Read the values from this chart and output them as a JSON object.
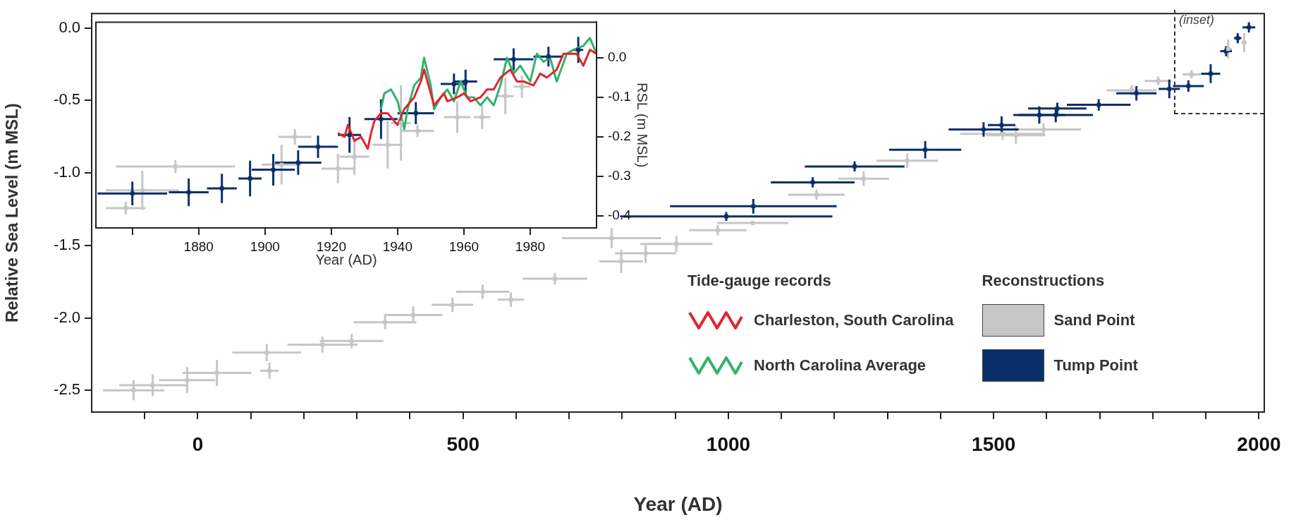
{
  "chart_data": [
    {
      "type": "scatter",
      "xlabel": "Year (AD)",
      "ylabel": "Relative Sea Level (m MSL)",
      "xlim": [
        -200,
        2010
      ],
      "ylim": [
        -2.65,
        0.1
      ],
      "xticks": [
        {
          "value": -100,
          "label": null
        },
        0,
        {
          "value": 100,
          "label": null
        },
        {
          "value": 200,
          "label": null
        },
        {
          "value": 300,
          "label": null
        },
        {
          "value": 400,
          "label": null
        },
        500,
        {
          "value": 600,
          "label": null
        },
        {
          "value": 700,
          "label": null
        },
        {
          "value": 800,
          "label": null
        },
        {
          "value": 900,
          "label": null
        },
        1000,
        {
          "value": 1100,
          "label": null
        },
        {
          "value": 1200,
          "label": null
        },
        {
          "value": 1300,
          "label": null
        },
        {
          "value": 1400,
          "label": null
        },
        1500,
        {
          "value": 1600,
          "label": null
        },
        {
          "value": 1700,
          "label": null
        },
        {
          "value": 1800,
          "label": null
        },
        {
          "value": 1900,
          "label": null
        },
        2000
      ],
      "yticks": [
        {
          "value": -2.5,
          "label": "-2.5"
        },
        {
          "value": -2,
          "label": "-2.0"
        },
        {
          "value": -1.5,
          "label": "-1.5"
        },
        {
          "value": -1,
          "label": "-1.0"
        },
        {
          "value": -0.5,
          "label": "-0.5"
        },
        {
          "value": 0,
          "label": "0.0"
        }
      ],
      "grid": false,
      "legend": false,
      "marker": "square",
      "annotations": [
        "(inset)"
      ],
      "series": [
        {
          "color": "#c6c6c6",
          "x": [
            -121,
            -85,
            -20,
            36,
            130,
            135,
            235,
            290,
            353,
            406,
            480,
            537,
            590,
            673,
            780,
            798,
            844,
            902,
            980,
            1046,
            1166,
            1255,
            1337,
            1517,
            1542,
            1594,
            1760,
            1810,
            1873,
            1942,
            1972
          ],
          "values": [
            -2.5,
            -2.465,
            -2.43,
            -2.38,
            -2.24,
            -2.365,
            -2.185,
            -2.16,
            -2.03,
            -1.98,
            -1.91,
            -1.82,
            -1.875,
            -1.73,
            -1.45,
            -1.61,
            -1.555,
            -1.49,
            -1.395,
            -1.345,
            -1.15,
            -1.04,
            -0.915,
            -0.73,
            -0.74,
            -0.7,
            -0.43,
            -0.365,
            -0.32,
            -0.145,
            -0.1
          ],
          "xerrors": [
            58,
            63,
            53,
            65,
            65,
            17,
            66,
            60,
            59,
            55,
            39,
            50,
            25,
            61,
            93,
            41,
            58,
            68,
            54,
            67,
            53,
            48,
            58,
            80,
            55,
            71,
            47,
            25,
            17,
            7,
            5
          ],
          "errors": [
            0.07,
            0.075,
            0.09,
            0.09,
            0.06,
            0.055,
            0.055,
            0.05,
            0.05,
            0.06,
            0.05,
            0.05,
            0.05,
            0.04,
            0.07,
            0.08,
            0.065,
            0.055,
            0.035,
            0.015,
            0.035,
            0.05,
            0.05,
            0.04,
            0.06,
            0.04,
            0.035,
            0.03,
            0.03,
            0.065,
            0.065
          ]
        },
        {
          "color": "#0b2f6a",
          "x": [
            996,
            1047,
            1159,
            1238,
            1371,
            1481,
            1515,
            1586,
            1617,
            1620,
            1698,
            1769,
            1831,
            1867,
            1909,
            1938,
            1960,
            1981
          ],
          "values": [
            -1.3,
            -1.23,
            -1.065,
            -0.955,
            -0.84,
            -0.7,
            -0.67,
            -0.6,
            -0.6,
            -0.555,
            -0.53,
            -0.45,
            -0.42,
            -0.4,
            -0.315,
            -0.16,
            -0.07,
            0.005
          ],
          "xerrors": [
            200,
            157,
            79,
            94,
            68,
            66,
            26,
            49,
            70,
            55,
            60,
            38,
            20,
            29,
            18,
            11,
            7,
            12
          ],
          "errors": [
            0.03,
            0.05,
            0.035,
            0.035,
            0.06,
            0.05,
            0.06,
            0.06,
            0.05,
            0.04,
            0.04,
            0.05,
            0.065,
            0.04,
            0.065,
            0.035,
            0.035,
            0.035
          ]
        }
      ]
    },
    {
      "type": "scatter",
      "xlabel": "Year (AD)",
      "ylabel": "RSL (m MSL)",
      "xlim": [
        1849,
        2000
      ],
      "ylim": [
        -0.43,
        0.09
      ],
      "xticks": [
        {
          "value": 1860,
          "label": null
        },
        1880,
        1900,
        1920,
        1940,
        1960,
        1980
      ],
      "yticks": [
        {
          "value": -0.4,
          "label": "-0.4"
        },
        {
          "value": -0.3,
          "label": "-0.3"
        },
        {
          "value": -0.2,
          "label": "-0.2"
        },
        {
          "value": -0.1,
          "label": "-0.1"
        },
        {
          "value": 0,
          "label": "0.0"
        }
      ],
      "grid": false,
      "legend": "bottom right",
      "marker": "square",
      "annotations": [
        "Tide-gauge records",
        "Reconstructions"
      ],
      "series": [
        {
          "name": "Sand Point",
          "color": "#c6c6c6",
          "x": [
            1873,
            1863,
            1858,
            1905,
            1909,
            1922,
            1927,
            1937,
            1941,
            1946,
            1958,
            1965.5,
            1972.5,
            1977.5
          ],
          "values": [
            -0.275,
            -0.335,
            -0.38,
            -0.27,
            -0.2,
            -0.28,
            -0.25,
            -0.22,
            -0.165,
            -0.185,
            -0.15,
            -0.15,
            -0.097,
            -0.073
          ],
          "xerrors": [
            18,
            11,
            6,
            6,
            5,
            5,
            4.5,
            4.5,
            3,
            5,
            4,
            2.5,
            2.5,
            2.5
          ],
          "errors": [
            0.016,
            0.05,
            0.016,
            0.05,
            0.02,
            0.037,
            0.046,
            0.06,
            0.095,
            0.016,
            0.04,
            0.03,
            0.046,
            0.028
          ]
        },
        {
          "name": "Tump Point",
          "color": "#0b2f6a",
          "x": [
            1860,
            1877,
            1887,
            1895.5,
            1902.5,
            1910,
            1916,
            1925.5,
            1935,
            1945.5,
            1957,
            1960.5,
            1975,
            1985.5,
            1994.5
          ],
          "values": [
            -0.343,
            -0.34,
            -0.33,
            -0.305,
            -0.283,
            -0.265,
            -0.225,
            -0.195,
            -0.155,
            -0.14,
            -0.066,
            -0.06,
            -0.004,
            0.003,
            0.02
          ],
          "xerrors": [
            10.5,
            6,
            4.5,
            3.5,
            6.5,
            7,
            6,
            3.5,
            5,
            5.5,
            4,
            3.5,
            6,
            4.5,
            1.5
          ],
          "errors": [
            0.03,
            0.035,
            0.037,
            0.045,
            0.04,
            0.031,
            0.028,
            0.045,
            0.05,
            0.028,
            0.026,
            0.03,
            0.028,
            0.025,
            0.033
          ]
        },
        {
          "name": "Charleston, South Carolina",
          "type": "line",
          "marker": "none",
          "color": "#e0262d",
          "x": [
            1922,
            1924,
            1925,
            1927,
            1929,
            1931,
            1932,
            1933,
            1935,
            1937,
            1939,
            1940,
            1942,
            1944,
            1945,
            1947,
            1948,
            1950,
            1951,
            1954,
            1955,
            1958,
            1960,
            1962,
            1965,
            1967,
            1969,
            1971,
            1974,
            1976,
            1978,
            1981,
            1983,
            1985,
            1988,
            1990,
            1992,
            1994,
            1996,
            1998,
            2000
          ],
          "values": [
            -0.19,
            -0.2,
            -0.17,
            -0.21,
            -0.2,
            -0.23,
            -0.19,
            -0.16,
            -0.14,
            -0.14,
            -0.16,
            -0.17,
            -0.13,
            -0.11,
            -0.1,
            -0.06,
            -0.03,
            -0.09,
            -0.12,
            -0.09,
            -0.11,
            -0.1,
            -0.09,
            -0.11,
            -0.1,
            -0.08,
            -0.08,
            -0.05,
            -0.03,
            -0.06,
            -0.06,
            -0.07,
            -0.04,
            -0.05,
            -0.03,
            0.01,
            0.01,
            0.01,
            -0.02,
            0.02,
            0.01
          ]
        },
        {
          "name": "North Carolina Average",
          "type": "line",
          "marker": "none",
          "color": "#2fb36b",
          "x": [
            1935,
            1936,
            1938,
            1940,
            1942,
            1943,
            1945,
            1947,
            1948,
            1950,
            1951,
            1953,
            1955,
            1957,
            1959,
            1961,
            1963,
            1965,
            1967,
            1969,
            1971,
            1973,
            1975,
            1977,
            1980,
            1982,
            1984,
            1986,
            1988,
            1991,
            1993,
            1996,
            1998,
            2000
          ],
          "values": [
            -0.13,
            -0.09,
            -0.08,
            -0.11,
            -0.18,
            -0.13,
            -0.07,
            -0.05,
            0.0,
            -0.07,
            -0.13,
            -0.1,
            -0.08,
            -0.11,
            -0.06,
            -0.1,
            -0.1,
            -0.12,
            -0.1,
            -0.12,
            -0.07,
            0.0,
            -0.04,
            -0.02,
            -0.06,
            0.01,
            -0.01,
            0.0,
            -0.06,
            0.01,
            0.02,
            0.03,
            0.05,
            0.01
          ]
        }
      ]
    }
  ]
}
